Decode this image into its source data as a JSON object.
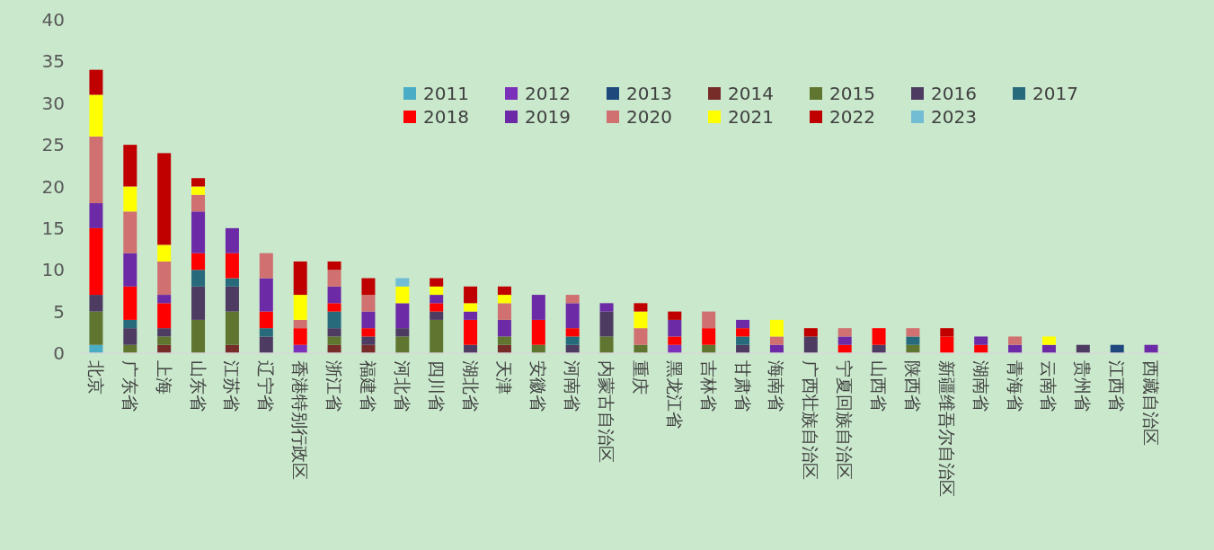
{
  "chart_data": {
    "type": "bar",
    "stacked": true,
    "legend": "top right",
    "ylim": [
      0,
      40
    ],
    "yticks": [
      0,
      5,
      10,
      15,
      20,
      25,
      30,
      35,
      40
    ],
    "categories": [
      "北京",
      "广东省",
      "上海",
      "山东省",
      "江苏省",
      "辽宁省",
      "香港特别行政区",
      "浙江省",
      "福建省",
      "河北省",
      "四川省",
      "湖北省",
      "天津",
      "安徽省",
      "河南省",
      "内蒙古自治区",
      "重庆",
      "黑龙江省",
      "吉林省",
      "甘肃省",
      "海南省",
      "广西壮族自治区",
      "宁夏回族自治区",
      "山西省",
      "陕西省",
      "新疆维吾尔自治区",
      "湖南省",
      "青海省",
      "云南省",
      "贵州省",
      "江西省",
      "西藏自治区"
    ],
    "series": [
      {
        "name": "2011",
        "color": "#4bacc6",
        "values": [
          1,
          null,
          null,
          null,
          null,
          null,
          null,
          null,
          null,
          null,
          null,
          null,
          null,
          null,
          null,
          null,
          null,
          null,
          null,
          null,
          null,
          null,
          null,
          null,
          null,
          null,
          null,
          null,
          null,
          null,
          null,
          null
        ]
      },
      {
        "name": "2012",
        "color": "#7a30b8",
        "values": [
          null,
          null,
          null,
          null,
          null,
          null,
          1,
          null,
          null,
          null,
          null,
          null,
          null,
          null,
          null,
          null,
          null,
          1,
          null,
          null,
          null,
          null,
          null,
          null,
          null,
          null,
          null,
          null,
          null,
          null,
          null,
          null
        ]
      },
      {
        "name": "2013",
        "color": "#1f497d",
        "values": [
          null,
          null,
          null,
          null,
          null,
          null,
          null,
          null,
          null,
          null,
          null,
          null,
          null,
          null,
          null,
          null,
          null,
          null,
          null,
          null,
          null,
          null,
          null,
          null,
          null,
          null,
          null,
          null,
          null,
          null,
          1,
          null
        ]
      },
      {
        "name": "2014",
        "color": "#772c2a",
        "values": [
          null,
          null,
          1,
          null,
          1,
          null,
          null,
          1,
          1,
          null,
          null,
          null,
          1,
          null,
          null,
          null,
          null,
          null,
          null,
          null,
          null,
          null,
          null,
          null,
          null,
          null,
          null,
          null,
          null,
          null,
          null,
          null
        ]
      },
      {
        "name": "2015",
        "color": "#5f7530",
        "values": [
          4,
          1,
          1,
          4,
          4,
          null,
          null,
          1,
          null,
          2,
          4,
          null,
          1,
          1,
          null,
          2,
          1,
          null,
          1,
          null,
          null,
          null,
          null,
          null,
          1,
          null,
          null,
          null,
          null,
          null,
          null,
          null
        ]
      },
      {
        "name": "2016",
        "color": "#4d3b62",
        "values": [
          2,
          2,
          1,
          4,
          3,
          2,
          null,
          1,
          1,
          1,
          1,
          1,
          null,
          null,
          1,
          3,
          null,
          null,
          null,
          1,
          null,
          2,
          null,
          1,
          null,
          null,
          null,
          null,
          null,
          1,
          null,
          null
        ]
      },
      {
        "name": "2017",
        "color": "#276a7c",
        "values": [
          null,
          1,
          null,
          2,
          1,
          1,
          null,
          2,
          null,
          null,
          null,
          null,
          null,
          null,
          1,
          null,
          null,
          null,
          null,
          1,
          null,
          null,
          null,
          null,
          1,
          null,
          null,
          null,
          null,
          null,
          null,
          null
        ]
      },
      {
        "name": "2018",
        "color": "#ff0000",
        "values": [
          8,
          4,
          3,
          2,
          3,
          2,
          2,
          1,
          1,
          null,
          1,
          3,
          null,
          3,
          1,
          null,
          null,
          1,
          2,
          1,
          null,
          null,
          1,
          2,
          null,
          2,
          1,
          null,
          null,
          null,
          null,
          null
        ]
      },
      {
        "name": "2019",
        "color": "#6c2aa6",
        "values": [
          3,
          4,
          1,
          5,
          3,
          4,
          null,
          2,
          2,
          3,
          1,
          1,
          2,
          3,
          3,
          1,
          null,
          2,
          null,
          1,
          1,
          null,
          1,
          null,
          null,
          null,
          1,
          1,
          1,
          null,
          null,
          1
        ]
      },
      {
        "name": "2020",
        "color": "#d07070",
        "values": [
          8,
          5,
          4,
          2,
          null,
          3,
          1,
          2,
          2,
          null,
          null,
          null,
          2,
          null,
          1,
          null,
          2,
          null,
          2,
          null,
          1,
          null,
          1,
          null,
          1,
          null,
          null,
          1,
          null,
          null,
          null,
          null
        ]
      },
      {
        "name": "2021",
        "color": "#ffff00",
        "values": [
          5,
          3,
          2,
          1,
          null,
          null,
          3,
          null,
          null,
          2,
          1,
          1,
          1,
          null,
          null,
          null,
          2,
          null,
          null,
          null,
          2,
          null,
          null,
          null,
          null,
          null,
          null,
          null,
          1,
          null,
          null,
          null
        ]
      },
      {
        "name": "2022",
        "color": "#c00000",
        "values": [
          3,
          5,
          11,
          1,
          null,
          null,
          4,
          1,
          2,
          null,
          1,
          2,
          1,
          null,
          null,
          null,
          1,
          1,
          null,
          null,
          null,
          1,
          null,
          null,
          null,
          1,
          null,
          null,
          null,
          null,
          null,
          null
        ]
      },
      {
        "name": "2023",
        "color": "#72bcd4",
        "values": [
          null,
          null,
          null,
          null,
          null,
          null,
          null,
          null,
          null,
          1,
          null,
          null,
          null,
          null,
          null,
          null,
          null,
          null,
          null,
          null,
          null,
          null,
          null,
          null,
          null,
          null,
          null,
          null,
          null,
          null,
          null,
          null
        ]
      }
    ]
  }
}
